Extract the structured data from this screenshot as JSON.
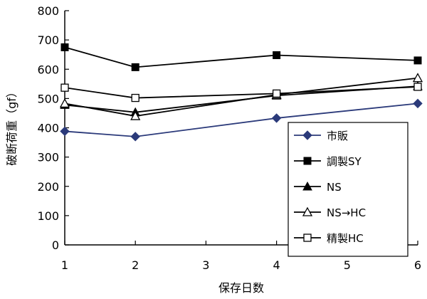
{
  "chart_data": {
    "type": "line",
    "title": "",
    "xlabel": "保存日数",
    "ylabel": "破断荷重（gf）",
    "x": [
      1,
      2,
      4,
      6
    ],
    "xlim": [
      1,
      6
    ],
    "xticks": [
      "1",
      "2",
      "3",
      "4",
      "5",
      "6"
    ],
    "ylim": [
      0,
      800
    ],
    "yticks": [
      "0",
      "100",
      "200",
      "300",
      "400",
      "500",
      "600",
      "700",
      "800"
    ],
    "grid": false,
    "legend_position": "bottom-right",
    "series": [
      {
        "name": "市販",
        "values": [
          388,
          370,
          433,
          483
        ],
        "color": "#2b3a7a",
        "marker": "diamond-filled"
      },
      {
        "name": "調製SY",
        "values": [
          675,
          607,
          648,
          630
        ],
        "color": "#000000",
        "marker": "square-filled"
      },
      {
        "name": "NS",
        "values": [
          478,
          453,
          510,
          542
        ],
        "color": "#000000",
        "marker": "triangle-filled"
      },
      {
        "name": "NS→HC",
        "values": [
          483,
          440,
          513,
          570
        ],
        "color": "#000000",
        "marker": "triangle-open"
      },
      {
        "name": "精製HC",
        "values": [
          537,
          502,
          517,
          540
        ],
        "color": "#000000",
        "marker": "square-open"
      }
    ]
  }
}
